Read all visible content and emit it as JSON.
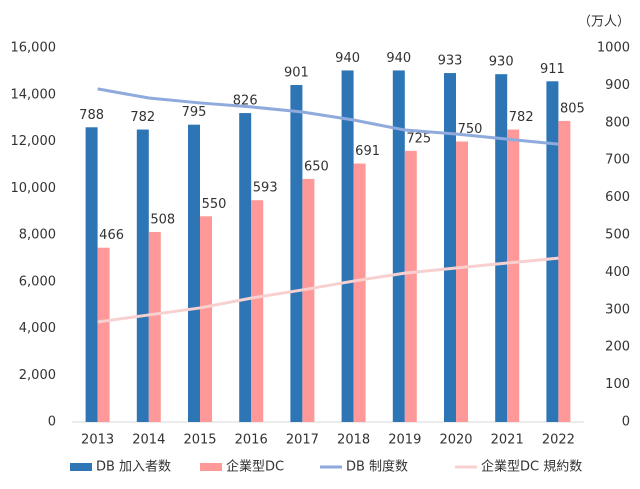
{
  "chart_data": {
    "type": "combo",
    "categories": [
      "2013",
      "2014",
      "2015",
      "2016",
      "2017",
      "2018",
      "2019",
      "2020",
      "2021",
      "2022"
    ],
    "series": [
      {
        "name": "DB 加入者数",
        "type": "bar",
        "axis": "y2",
        "color": "#2e75b6",
        "values": [
          788,
          782,
          795,
          826,
          901,
          940,
          940,
          933,
          930,
          911
        ]
      },
      {
        "name": "企業型DC",
        "type": "bar",
        "axis": "y2",
        "color": "#ff9999",
        "values": [
          466,
          508,
          550,
          593,
          650,
          691,
          725,
          750,
          782,
          805
        ]
      },
      {
        "name": "DB 制度数",
        "type": "line",
        "color": "#8faadc",
        "values": [
          14250,
          13860,
          13650,
          13480,
          13260,
          12920,
          12490,
          12320,
          12100,
          11890
        ]
      },
      {
        "name": "企業型DC 規約数",
        "type": "line",
        "color": "#f8d0d0",
        "values": [
          4280,
          4580,
          4880,
          5300,
          5650,
          6030,
          6370,
          6590,
          6800,
          7010
        ]
      }
    ],
    "ylim": [
      0,
      16000
    ],
    "yticks": [
      0,
      {
        "value": 2000,
        "label": "2,000"
      },
      {
        "value": 4000,
        "label": "4,000"
      },
      {
        "value": 6000,
        "label": "6,000"
      },
      {
        "value": 8000,
        "label": "8,000"
      },
      {
        "value": 10000,
        "label": "10,000"
      },
      {
        "value": 12000,
        "label": "12,000"
      },
      {
        "value": 14000,
        "label": "14,000"
      },
      {
        "value": 16000,
        "label": "16,000"
      }
    ],
    "y2lim": [
      0,
      1000
    ],
    "y2ticks": [
      0,
      100,
      200,
      300,
      400,
      500,
      600,
      700,
      800,
      900,
      1000
    ],
    "y2label": "（万人）",
    "legend": "bottom"
  }
}
